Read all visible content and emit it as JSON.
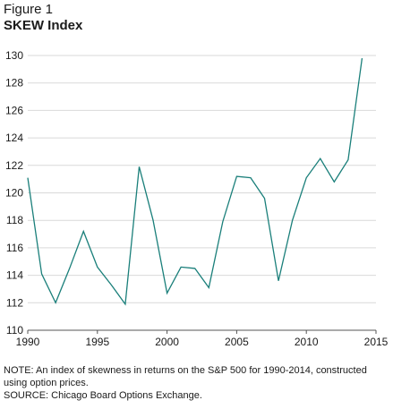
{
  "figure_label": "Figure 1",
  "chart_data": {
    "type": "line",
    "title": "SKEW Index",
    "xlabel": "",
    "ylabel": "",
    "x": [
      1990,
      1991,
      1992,
      1993,
      1994,
      1995,
      1996,
      1997,
      1998,
      1999,
      2000,
      2001,
      2002,
      2003,
      2004,
      2005,
      2006,
      2007,
      2008,
      2009,
      2010,
      2011,
      2012,
      2013,
      2014
    ],
    "series": [
      {
        "values": [
          121.1,
          114.1,
          112.0,
          114.5,
          117.2,
          114.6,
          113.3,
          111.9,
          121.9,
          118.0,
          112.7,
          114.6,
          114.5,
          113.1,
          117.9,
          121.2,
          121.1,
          119.6,
          113.6,
          118.0,
          121.1,
          122.5,
          120.8,
          122.4,
          129.8
        ]
      }
    ],
    "xlim": [
      1990,
      2015
    ],
    "ylim": [
      110,
      130
    ],
    "xticks": [
      "1990",
      "1995",
      "2000",
      "2005",
      "2010",
      "2015"
    ],
    "yticks": [
      "110",
      "112",
      "114",
      "116",
      "118",
      "120",
      "122",
      "124",
      "126",
      "128",
      "130"
    ],
    "grid": "horizontal",
    "legend": "none",
    "line_color": "#1a7f7a",
    "grid_color": "#d9d9d9"
  },
  "notes": {
    "note": "NOTE: An index of skewness in returns on the S&P 500 for 1990-2014, constructed using option prices.",
    "source": "SOURCE: Chicago Board Options Exchange."
  }
}
